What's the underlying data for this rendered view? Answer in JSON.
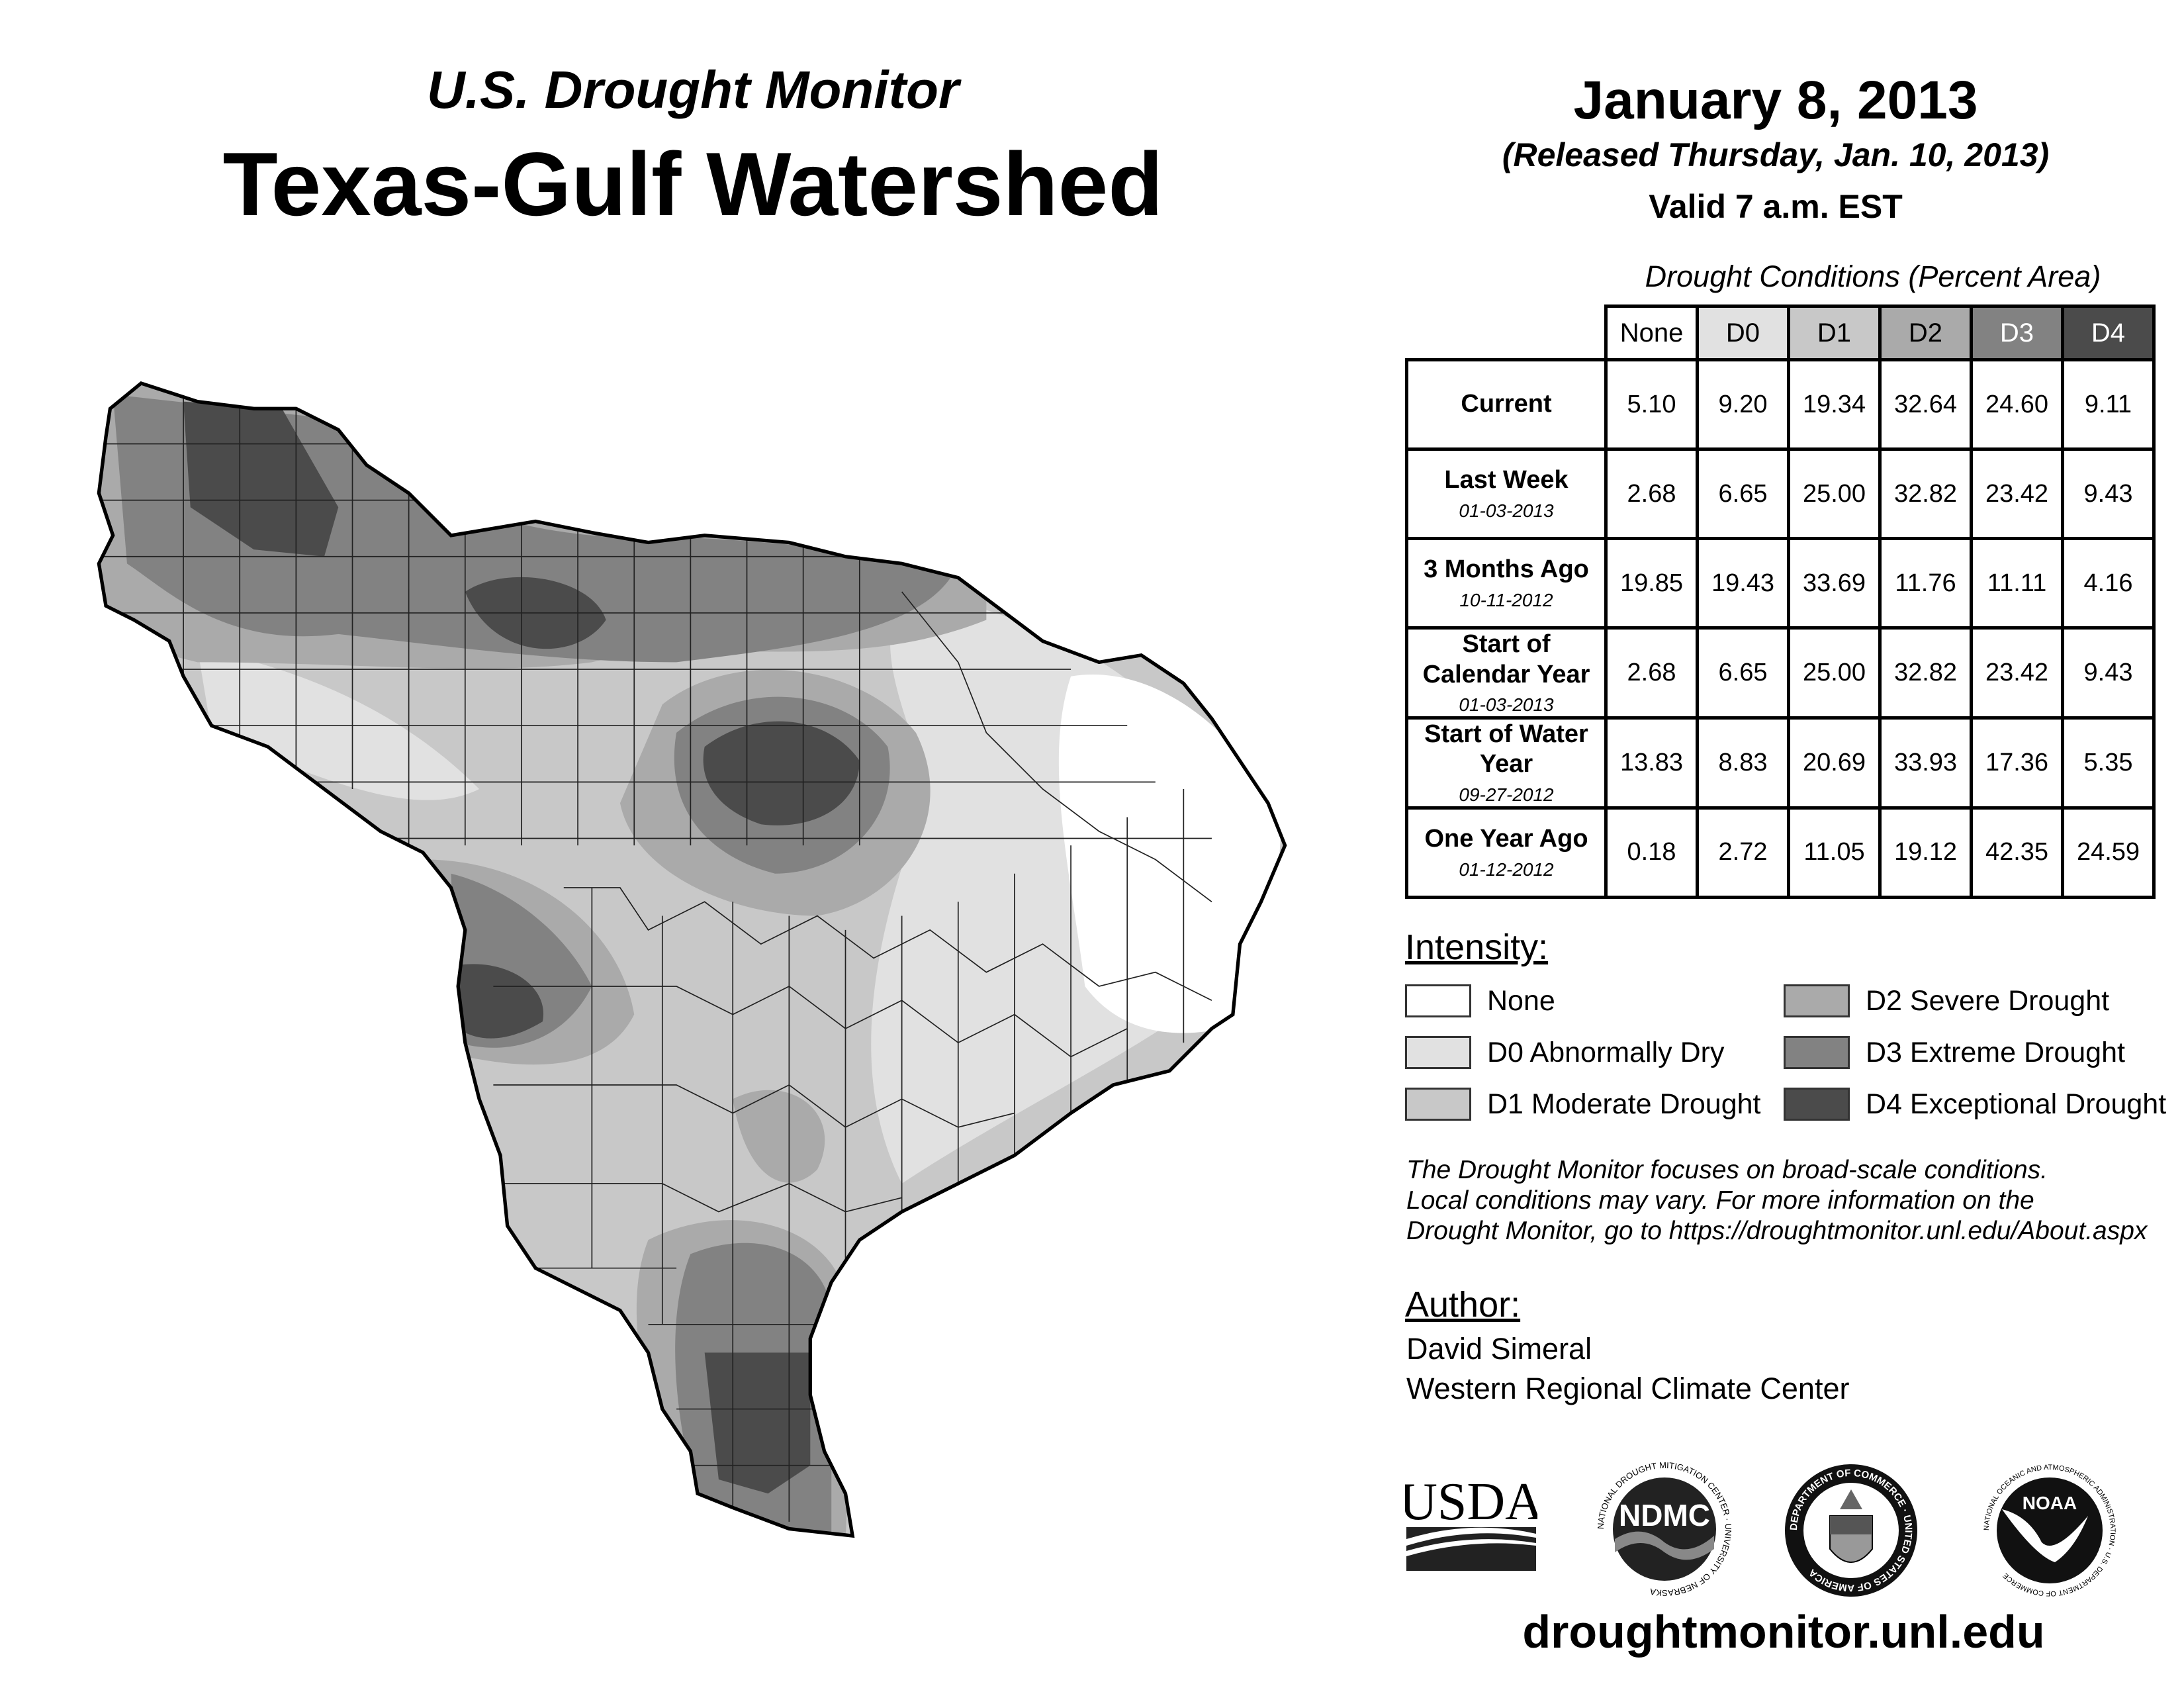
{
  "header": {
    "subtitle": "U.S. Drought Monitor",
    "title": "Texas-Gulf Watershed",
    "date": "January 8, 2013",
    "released": "(Released Thursday, Jan. 10, 2013)",
    "valid": "Valid 7 a.m. EST"
  },
  "table": {
    "caption": "Drought Conditions (Percent Area)",
    "columns": [
      "None",
      "D0",
      "D1",
      "D2",
      "D3",
      "D4"
    ],
    "rows": [
      {
        "label": "Current",
        "date": "",
        "values": [
          "5.10",
          "9.20",
          "19.34",
          "32.64",
          "24.60",
          "9.11"
        ]
      },
      {
        "label": "Last Week",
        "date": "01-03-2013",
        "values": [
          "2.68",
          "6.65",
          "25.00",
          "32.82",
          "23.42",
          "9.43"
        ]
      },
      {
        "label": "3 Months Ago",
        "date": "10-11-2012",
        "values": [
          "19.85",
          "19.43",
          "33.69",
          "11.76",
          "11.11",
          "4.16"
        ]
      },
      {
        "label": "Start of Calendar Year",
        "date": "01-03-2013",
        "values": [
          "2.68",
          "6.65",
          "25.00",
          "32.82",
          "23.42",
          "9.43"
        ]
      },
      {
        "label": "Start of Water Year",
        "date": "09-27-2012",
        "values": [
          "13.83",
          "8.83",
          "20.69",
          "33.93",
          "17.36",
          "5.35"
        ]
      },
      {
        "label": "One Year Ago",
        "date": "01-12-2012",
        "values": [
          "0.18",
          "2.72",
          "11.05",
          "19.12",
          "42.35",
          "24.59"
        ]
      }
    ]
  },
  "legend": {
    "title": "Intensity:",
    "items": [
      {
        "label": "None",
        "color": "#ffffff"
      },
      {
        "label": "D0 Abnormally Dry",
        "color": "#e1e1e1"
      },
      {
        "label": "D1 Moderate Drought",
        "color": "#c8c8c8"
      },
      {
        "label": "D2 Severe Drought",
        "color": "#aaaaaa"
      },
      {
        "label": "D3 Extreme Drought",
        "color": "#828282"
      },
      {
        "label": "D4 Exceptional Drought",
        "color": "#4b4b4b"
      }
    ]
  },
  "note": {
    "lines": [
      "The Drought Monitor focuses on broad-scale conditions.",
      "Local conditions may vary. For more information on the",
      "Drought Monitor, go to https://droughtmonitor.unl.edu/About.aspx"
    ]
  },
  "author": {
    "label": "Author:",
    "name": "David Simeral",
    "org": "Western Regional Climate Center"
  },
  "logos": {
    "usda": "USDA",
    "ndmc": "NDMC",
    "ndmc_ring": "NATIONAL DROUGHT MITIGATION CENTER · UNIVERSITY OF NEBRASKA",
    "commerce_ring": "DEPARTMENT OF COMMERCE · UNITED STATES OF AMERICA",
    "noaa": "NOAA",
    "noaa_ring": "NATIONAL OCEANIC AND ATMOSPHERIC ADMINISTRATION · U.S. DEPARTMENT OF COMMERCE"
  },
  "footer": {
    "website": "droughtmonitor.unl.edu"
  }
}
